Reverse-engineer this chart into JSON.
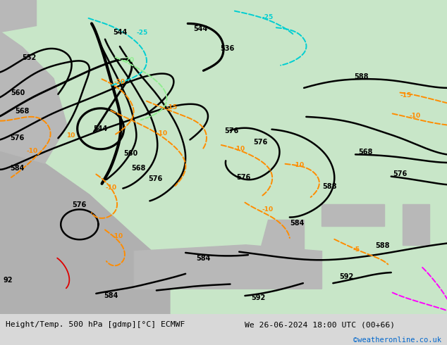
{
  "title_left": "Height/Temp. 500 hPa [gdmp][°C] ECMWF",
  "title_right": "We 26-06-2024 18:00 UTC (00+66)",
  "credit": "©weatheronline.co.uk",
  "land_color": "#c8e6c8",
  "sea_color": "#b8b8b8",
  "bottom_bar_color": "#d8d8d8",
  "credit_color": "#0066cc",
  "z500_color": "#000000",
  "temp_neg_color": "#ff8c00",
  "cyan_color": "#00ced1",
  "lime_color": "#90ee90",
  "magenta_color": "#ff00ff",
  "red_color": "#dd0000",
  "contour_lw": 1.8,
  "fig_width": 6.34,
  "fig_height": 4.9,
  "dpi": 100
}
